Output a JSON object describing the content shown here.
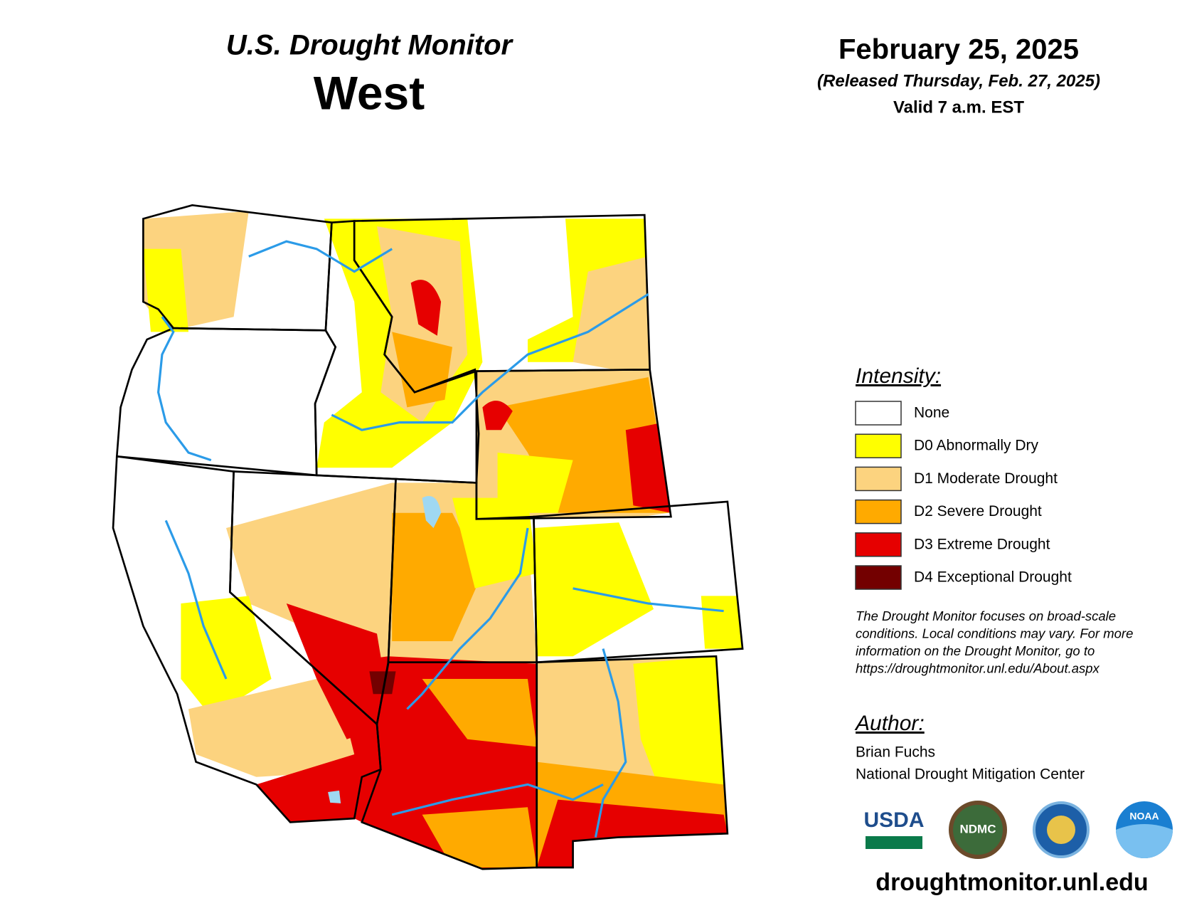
{
  "header": {
    "title": "U.S. Drought Monitor",
    "region": "West",
    "date": "February 25, 2025",
    "released": "(Released Thursday, Feb. 27, 2025)",
    "valid": "Valid 7 a.m. EST"
  },
  "legend": {
    "title": "Intensity:",
    "items": [
      {
        "label": "None",
        "color": "#ffffff"
      },
      {
        "label": "D0 Abnormally Dry",
        "color": "#ffff00"
      },
      {
        "label": "D1 Moderate Drought",
        "color": "#fcd37f"
      },
      {
        "label": "D2 Severe Drought",
        "color": "#ffaa00"
      },
      {
        "label": "D3 Extreme Drought",
        "color": "#e60000"
      },
      {
        "label": "D4 Exceptional Drought",
        "color": "#730000"
      }
    ]
  },
  "note": [
    "The Drought Monitor focuses on broad-scale",
    "conditions. Local conditions may vary. For more",
    "information on the Drought Monitor, go to",
    "https://droughtmonitor.unl.edu/About.aspx"
  ],
  "author": {
    "title": "Author:",
    "name": "Brian Fuchs",
    "org": "National Drought Mitigation Center"
  },
  "logos": [
    "USDA",
    "NDMC",
    "NOAA"
  ],
  "website": "droughtmonitor.unl.edu"
}
